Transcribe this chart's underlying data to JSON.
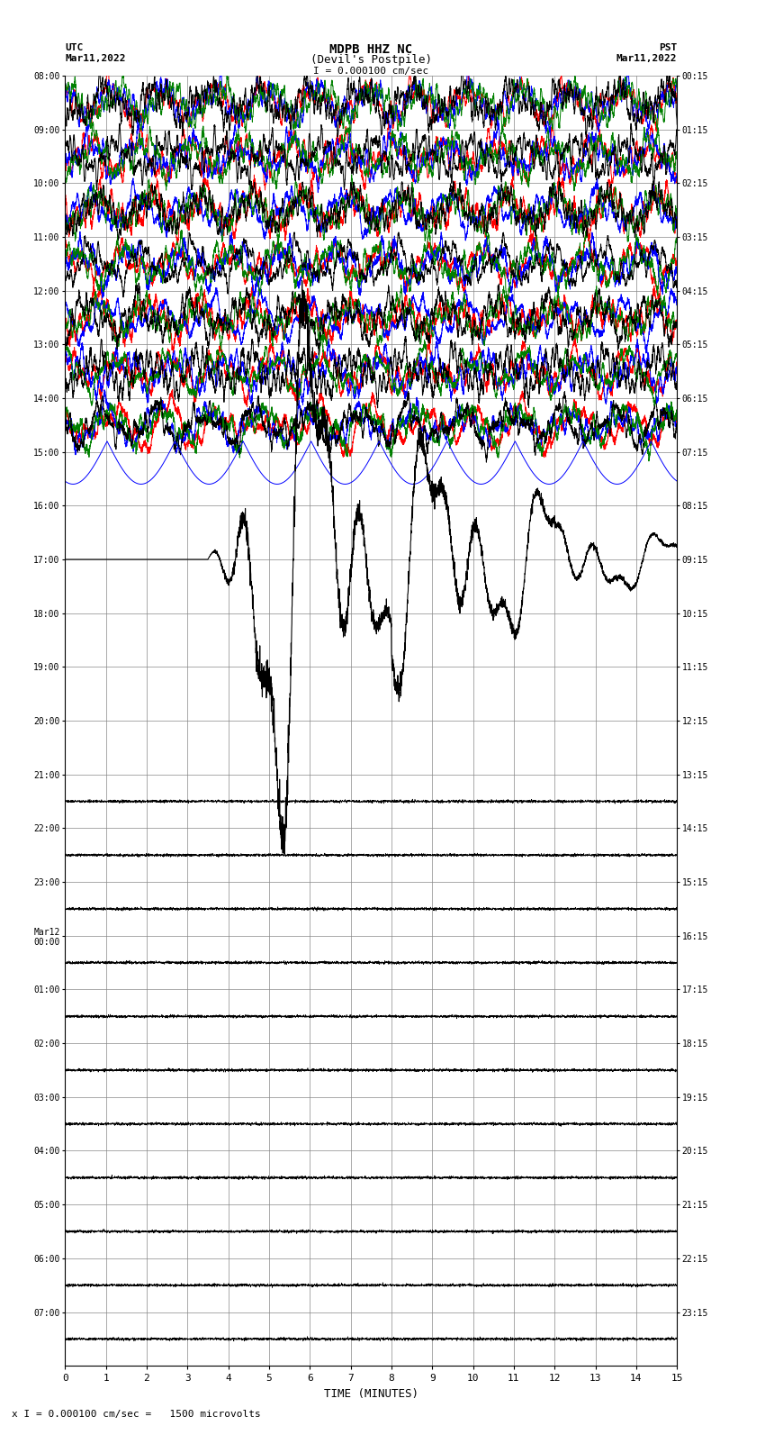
{
  "title_line1": "MDPB HHZ NC",
  "title_line2": "(Devil's Postpile)",
  "scale_label": "I = 0.000100 cm/sec",
  "bottom_label": "x I = 0.000100 cm/sec =   1500 microvolts",
  "left_tz": "UTC",
  "left_date": "Mar11,2022",
  "right_tz": "PST",
  "right_date": "Mar11,2022",
  "xlabel": "TIME (MINUTES)",
  "xlim": [
    0,
    15
  ],
  "xticks": [
    0,
    1,
    2,
    3,
    4,
    5,
    6,
    7,
    8,
    9,
    10,
    11,
    12,
    13,
    14,
    15
  ],
  "left_yticks_labels": [
    "08:00",
    "09:00",
    "10:00",
    "11:00",
    "12:00",
    "13:00",
    "14:00",
    "15:00",
    "16:00",
    "17:00",
    "18:00",
    "19:00",
    "20:00",
    "21:00",
    "22:00",
    "23:00",
    "Mar12\n00:00",
    "01:00",
    "02:00",
    "03:00",
    "04:00",
    "05:00",
    "06:00",
    "07:00"
  ],
  "right_yticks_labels": [
    "00:15",
    "01:15",
    "02:15",
    "03:15",
    "04:15",
    "05:15",
    "06:15",
    "07:15",
    "08:15",
    "09:15",
    "10:15",
    "11:15",
    "12:15",
    "13:15",
    "14:15",
    "15:15",
    "16:15",
    "17:15",
    "18:15",
    "19:15",
    "20:15",
    "21:15",
    "22:15",
    "23:15"
  ],
  "n_rows": 24,
  "bg_color": "#ffffff",
  "grid_color": "#888888",
  "trace_colors": [
    "#ff0000",
    "#0000ff",
    "#008000",
    "#000000"
  ],
  "figsize": [
    8.5,
    16.13
  ],
  "dpi": 100
}
